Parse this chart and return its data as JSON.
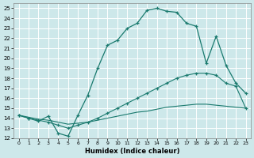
{
  "xlabel": "Humidex (Indice chaleur)",
  "bg_color": "#cde8ea",
  "grid_color": "#b0d4d8",
  "line_color": "#1a7a6e",
  "xlim": [
    -0.5,
    23.5
  ],
  "ylim": [
    12,
    25.5
  ],
  "xticks": [
    0,
    1,
    2,
    3,
    4,
    5,
    6,
    7,
    8,
    9,
    10,
    11,
    12,
    13,
    14,
    15,
    16,
    17,
    18,
    19,
    20,
    21,
    22,
    23
  ],
  "yticks": [
    12,
    13,
    14,
    15,
    16,
    17,
    18,
    19,
    20,
    21,
    22,
    23,
    24,
    25
  ],
  "line1_x": [
    0,
    1,
    2,
    3,
    4,
    5,
    6,
    7,
    8,
    9,
    10,
    11,
    12,
    13,
    14,
    15,
    16,
    17,
    18,
    19,
    20,
    21,
    22,
    23
  ],
  "line1_y": [
    14.3,
    14.0,
    13.7,
    14.2,
    12.5,
    12.2,
    14.3,
    16.3,
    19.0,
    21.3,
    21.8,
    23.0,
    23.5,
    24.8,
    25.0,
    24.7,
    24.6,
    23.5,
    23.2,
    19.5,
    22.2,
    19.3,
    17.5,
    16.5
  ],
  "line2_x": [
    0,
    1,
    2,
    3,
    4,
    5,
    6,
    7,
    8,
    9,
    10,
    11,
    12,
    13,
    14,
    15,
    16,
    17,
    18,
    19,
    20,
    21,
    22,
    23
  ],
  "line2_y": [
    14.3,
    14.0,
    13.8,
    13.6,
    13.3,
    13.0,
    13.3,
    13.6,
    14.0,
    14.5,
    15.0,
    15.5,
    16.0,
    16.5,
    17.0,
    17.5,
    18.0,
    18.3,
    18.5,
    18.5,
    18.3,
    17.5,
    17.2,
    15.0
  ],
  "line3_x": [
    0,
    1,
    2,
    3,
    4,
    5,
    6,
    7,
    8,
    9,
    10,
    11,
    12,
    13,
    14,
    15,
    16,
    17,
    18,
    19,
    20,
    21,
    22,
    23
  ],
  "line3_y": [
    14.3,
    14.1,
    13.9,
    13.8,
    13.6,
    13.4,
    13.5,
    13.6,
    13.8,
    14.0,
    14.2,
    14.4,
    14.6,
    14.7,
    14.9,
    15.1,
    15.2,
    15.3,
    15.4,
    15.4,
    15.3,
    15.2,
    15.1,
    15.0
  ]
}
